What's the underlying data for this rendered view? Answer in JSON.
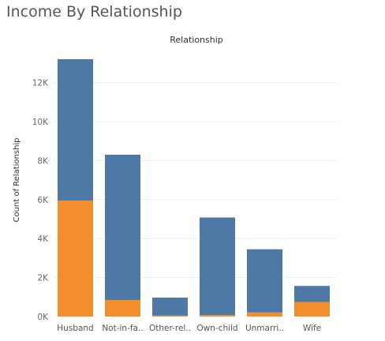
{
  "title": "Income By Relationship",
  "chart_data": {
    "type": "bar",
    "stacked": true,
    "header": "Relationship",
    "ylabel": "Count of Relationship",
    "categories": [
      "Husband",
      "Not-in-fa..",
      "Other-rel..",
      "Own-child",
      "Unmarri..",
      "Wife"
    ],
    "series": [
      {
        "color": "#f28e2b",
        "values": [
          5950,
          850,
          50,
          80,
          210,
          750
        ]
      },
      {
        "color": "#4e79a7",
        "values": [
          7250,
          7450,
          920,
          5000,
          3240,
          820
        ]
      }
    ],
    "yticks": [
      0,
      2000,
      4000,
      6000,
      8000,
      10000,
      12000
    ],
    "ytick_labels": [
      "0K",
      "2K",
      "4K",
      "6K",
      "8K",
      "10K",
      "12K"
    ],
    "ylim": [
      0,
      14000
    ],
    "grid": true
  }
}
